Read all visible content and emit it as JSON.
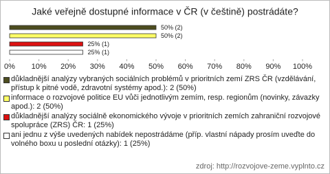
{
  "chart_data": {
    "type": "bar",
    "orientation": "horizontal",
    "title": "Jaké veřejně dostupné informace v ČR (v češtině) postrádáte?",
    "categories": [
      "důkladnější analýzy vybraných sociálních problémů v prioritních zemí ZRS ČR (vzdělávání, přístup k pitné vodě, zdravotní systémy apod.): 2 (50%)",
      "informace o rozvojové politice EU vůči jednotlivým zemím, resp. regionům (novinky, závazky apod.): 2 (50%)",
      "důkladnější analýzy sociálně ekonomického vývoje v prioritních zemích zahraniční rozvojové spolupráce (ZRS) ČR: 1 (25%)",
      "ani jednu z výše uvedených nabídek nepostrádáme (příp. vlastní nápady prosím uveďte do volného boxu u poslední otázky): 1 (25%)"
    ],
    "values": [
      50,
      50,
      25,
      25
    ],
    "value_labels": [
      "50% (2)",
      "50% (2)",
      "25% (1)",
      "25% (1)"
    ],
    "colors": [
      "#4d4d1f",
      "#ffff66",
      "#dd1111",
      "#ffffff"
    ],
    "xlim": [
      0,
      100
    ],
    "xticks": [
      {
        "value": 0,
        "label": "0%"
      },
      {
        "value": 10,
        "label": "10%"
      },
      {
        "value": 20,
        "label": "20%"
      },
      {
        "value": 30,
        "label": "30%"
      },
      {
        "value": 40,
        "label": "40%"
      },
      {
        "value": 50,
        "label": "50%"
      },
      {
        "value": 60,
        "label": "60%"
      },
      {
        "value": 70,
        "label": "70%"
      },
      {
        "value": 80,
        "label": "80%"
      },
      {
        "value": 90,
        "label": "90%"
      },
      {
        "value": 100,
        "label": "100%"
      }
    ],
    "source": "zdroj: http://rozvojove-zeme.vyplnto.cz"
  }
}
